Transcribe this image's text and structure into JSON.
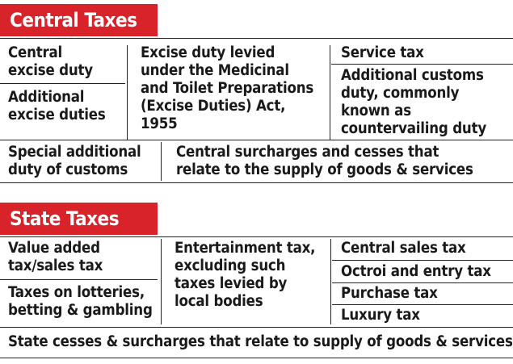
{
  "central": {
    "title": "Central Taxes",
    "central_excise": [
      "Central",
      "excise duty"
    ],
    "additional_excise": [
      "Additional",
      "excise duties"
    ],
    "medicinal": [
      "Excise duty levied",
      "under the Medicinal",
      "and Toilet Preparations",
      "(Excise Duties) Act,",
      "1955"
    ],
    "service_tax": "Service tax",
    "additional_customs": [
      "Additional customs",
      "duty, commonly",
      "known as",
      "countervailing duty"
    ],
    "special_customs": [
      "Special additional",
      "duty of customs"
    ],
    "central_surcharges": [
      "Central surcharges and cesses that",
      "relate to the supply of goods & services"
    ]
  },
  "state": {
    "title": "State Taxes",
    "vat": [
      "Value added",
      "tax/sales tax"
    ],
    "lotteries": [
      "Taxes on lotteries,",
      "betting & gambling"
    ],
    "entertainment": [
      "Entertainment tax,",
      "excluding such",
      "taxes levied by",
      "local bodies"
    ],
    "central_sales": "Central sales tax",
    "octroi": "Octroi and entry tax",
    "purchase": "Purchase tax",
    "luxury": "Luxury tax",
    "state_cesses": "State cesses & surcharges that relate to supply of goods & services"
  }
}
